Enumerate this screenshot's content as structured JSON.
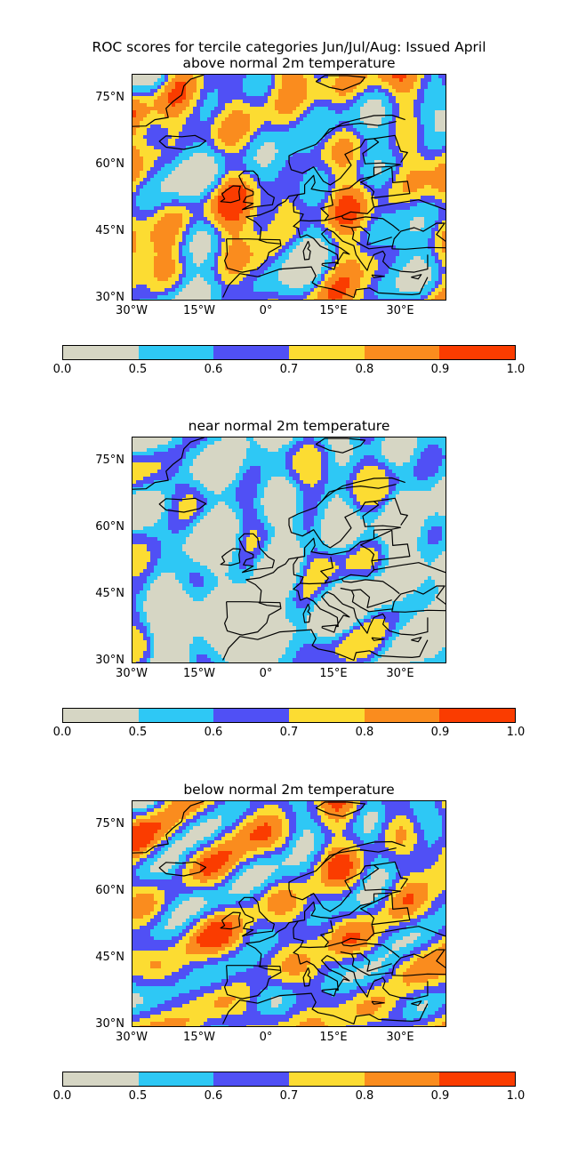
{
  "figure": {
    "title_line1": "ROC scores for tercile categories Jun/Jul/Aug: Issued April"
  },
  "lat_labels": [
    "75°N",
    "60°N",
    "45°N",
    "30°N"
  ],
  "lon_labels": [
    "30°W",
    "15°W",
    "0°",
    "15°E",
    "30°E"
  ],
  "colorbar": {
    "levels": [
      "0.0",
      "0.5",
      "0.6",
      "0.7",
      "0.8",
      "0.9",
      "1.0"
    ],
    "colors": [
      "#d6d6c4",
      "#2ec8f5",
      "#5050f5",
      "#fcdc32",
      "#fa8c1e",
      "#fa3c00"
    ]
  },
  "panels": [
    {
      "title": "above normal 2m temperature",
      "weights": [
        0.1,
        0.24,
        0.24,
        0.24,
        0.15,
        0.03
      ]
    },
    {
      "title": "near normal 2m temperature",
      "weights": [
        0.48,
        0.26,
        0.17,
        0.09,
        0.0,
        0.0
      ]
    },
    {
      "title": "below normal 2m temperature",
      "weights": [
        0.07,
        0.22,
        0.27,
        0.25,
        0.15,
        0.04
      ]
    }
  ],
  "chart_data": {
    "type": "heatmap",
    "title": "ROC scores for tercile categories Jun/Jul/Aug: Issued April",
    "lat_range": [
      30,
      80
    ],
    "lon_range": [
      -30,
      40
    ],
    "lat_ticks": [
      75,
      60,
      45,
      30
    ],
    "lon_ticks": [
      -30,
      -15,
      0,
      15,
      30
    ],
    "colorbar_levels": [
      0.0,
      0.5,
      0.6,
      0.7,
      0.8,
      0.9,
      1.0
    ],
    "panels": [
      "above normal 2m temperature",
      "near normal 2m temperature",
      "below normal 2m temperature"
    ]
  }
}
